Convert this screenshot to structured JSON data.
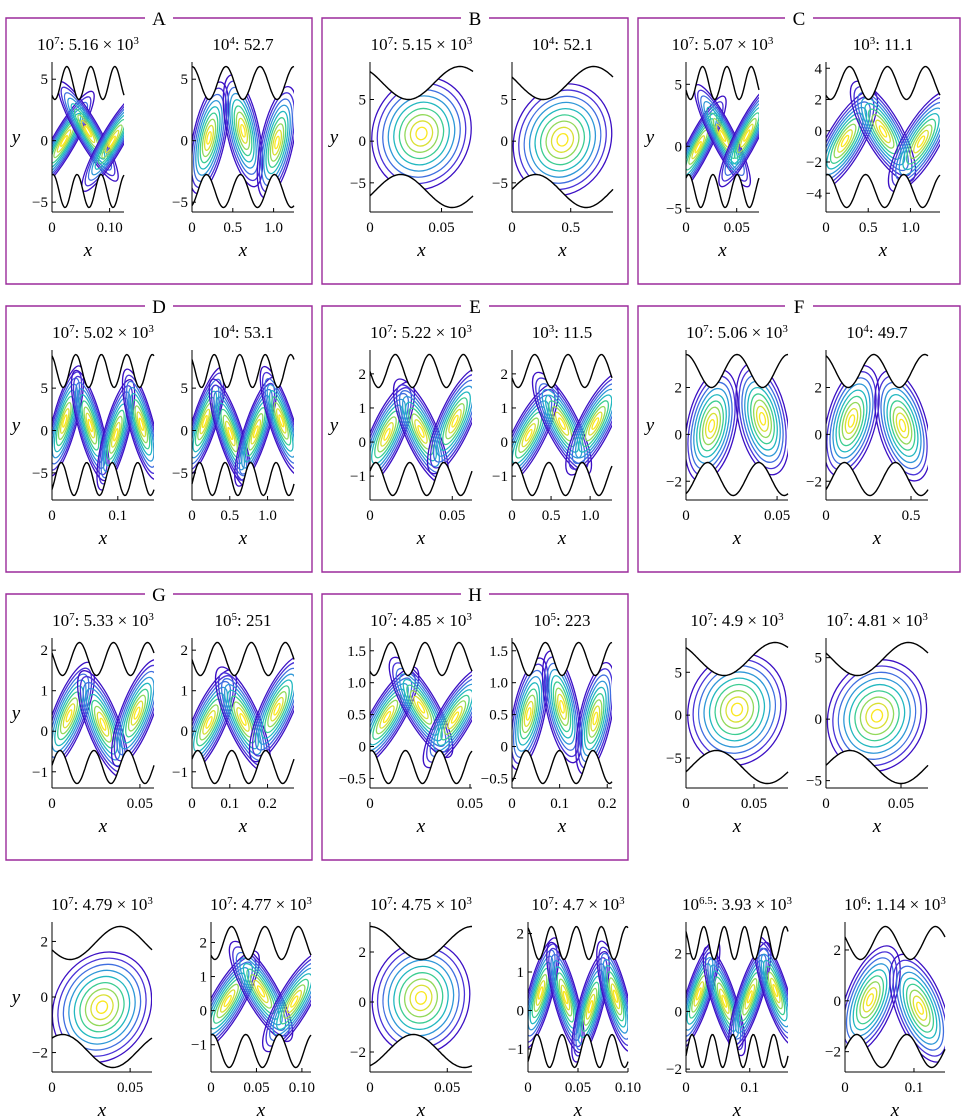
{
  "chart_data": {
    "type": "contour",
    "groups": [
      "A",
      "B",
      "C",
      "D",
      "E",
      "F",
      "G",
      "H"
    ],
    "x_axis_label": "x",
    "y_axis_label": "y",
    "palette": [
      "#3b0fc4",
      "#4a33d8",
      "#3f6ee0",
      "#2f98d8",
      "#22b8c0",
      "#3ccd92",
      "#92d95a",
      "#d9e033",
      "#fbe81f"
    ],
    "boundary_color": "#000000",
    "group_box_color": "#9b2a9b",
    "panels": [
      {
        "id": "A1",
        "group": "A",
        "title": "10^7: 5.16 × 10^3",
        "ra_exp": "7",
        "value_mant": "5.16",
        "value_exp": "3",
        "xticks": [
          "0",
          "0.10"
        ],
        "xtick_vals": [
          0,
          0.1
        ],
        "xlim": [
          0,
          0.125
        ],
        "yticks": [
          "5",
          "0",
          "−5"
        ],
        "ytick_vals": [
          5,
          0,
          -5
        ],
        "ylim": [
          -5.8,
          6.4
        ],
        "bump": 3,
        "row_label": "y"
      },
      {
        "id": "A2",
        "group": "A",
        "title": "10^4: 52.7",
        "ra_exp": "4",
        "value": "52.7",
        "xticks": [
          "0",
          "0.5",
          "1.0"
        ],
        "xtick_vals": [
          0,
          0.5,
          1.0
        ],
        "xlim": [
          0,
          1.25
        ],
        "yticks": [
          "5",
          "0",
          "−5"
        ],
        "ytick_vals": [
          5,
          0,
          -5
        ],
        "ylim": [
          -5.8,
          6.4
        ],
        "bump": 3
      },
      {
        "id": "B1",
        "group": "B",
        "title": "10^7: 5.15 × 10^3",
        "ra_exp": "7",
        "value_mant": "5.15",
        "value_exp": "3",
        "xticks": [
          "0",
          "0.05"
        ],
        "xtick_vals": [
          0,
          0.05
        ],
        "xlim": [
          0,
          0.072
        ],
        "yticks": [
          "5",
          "0",
          "−5"
        ],
        "ytick_vals": [
          5,
          0,
          -5
        ],
        "ylim": [
          -8.5,
          9.5
        ],
        "bump": 1,
        "row_label": "y"
      },
      {
        "id": "B2",
        "group": "B",
        "title": "10^4: 52.1",
        "ra_exp": "4",
        "value": "52.1",
        "xticks": [
          "0",
          "0.5"
        ],
        "xtick_vals": [
          0,
          0.5
        ],
        "xlim": [
          0,
          0.86
        ],
        "yticks": [
          "5",
          "0",
          "−5"
        ],
        "ytick_vals": [
          5,
          0,
          -5
        ],
        "ylim": [
          -8.5,
          9.5
        ],
        "bump": 1
      },
      {
        "id": "C1",
        "group": "C",
        "title": "10^7: 5.07 × 10^3",
        "ra_exp": "7",
        "value_mant": "5.07",
        "value_exp": "3",
        "xticks": [
          "0",
          "0.05"
        ],
        "xtick_vals": [
          0,
          0.05
        ],
        "xlim": [
          0,
          0.072
        ],
        "yticks": [
          "5",
          "0",
          "−5"
        ],
        "ytick_vals": [
          5,
          0,
          -5
        ],
        "ylim": [
          -5.3,
          6.8
        ],
        "bump": 3,
        "row_label": "y"
      },
      {
        "id": "C2",
        "group": "C",
        "title": "10^3: 11.1",
        "ra_exp": "3",
        "value": "11.1",
        "xticks": [
          "0",
          "0.5",
          "1.0"
        ],
        "xtick_vals": [
          0,
          0.5,
          1.0
        ],
        "xlim": [
          0,
          1.35
        ],
        "yticks": [
          "4",
          "2",
          "0",
          "−2",
          "−4"
        ],
        "ytick_vals": [
          4,
          2,
          0,
          -2,
          -4
        ],
        "ylim": [
          -5.2,
          4.4
        ],
        "bump": 3
      },
      {
        "id": "D1",
        "group": "D",
        "title": "10^7: 5.02 × 10^3",
        "ra_exp": "7",
        "value_mant": "5.02",
        "value_exp": "3",
        "xticks": [
          "0",
          "0.1"
        ],
        "xtick_vals": [
          0,
          0.1
        ],
        "xlim": [
          0,
          0.155
        ],
        "yticks": [
          "5",
          "0",
          "−5"
        ],
        "ytick_vals": [
          5,
          0,
          -5
        ],
        "ylim": [
          -8.2,
          9.5
        ],
        "bump": 4,
        "row_label": "y"
      },
      {
        "id": "D2",
        "group": "D",
        "title": "10^4: 53.1",
        "ra_exp": "4",
        "value": "53.1",
        "xticks": [
          "0",
          "0.5",
          "1.0"
        ],
        "xtick_vals": [
          0,
          0.5,
          1.0
        ],
        "xlim": [
          0,
          1.35
        ],
        "yticks": [
          "5",
          "0",
          "−5"
        ],
        "ytick_vals": [
          5,
          0,
          -5
        ],
        "ylim": [
          -8.2,
          9.5
        ],
        "bump": 4
      },
      {
        "id": "E1",
        "group": "E",
        "title": "10^7: 5.22 × 10^3",
        "ra_exp": "7",
        "value_mant": "5.22",
        "value_exp": "3",
        "xticks": [
          "0",
          "0.05"
        ],
        "xtick_vals": [
          0,
          0.05
        ],
        "xlim": [
          0,
          0.062
        ],
        "yticks": [
          "2",
          "1",
          "0",
          "−1"
        ],
        "ytick_vals": [
          2,
          1,
          0,
          -1
        ],
        "ylim": [
          -1.7,
          2.7
        ],
        "bump": 3,
        "row_label": "y"
      },
      {
        "id": "E2",
        "group": "E",
        "title": "10^3: 11.5",
        "ra_exp": "3",
        "value": "11.5",
        "xticks": [
          "0",
          "0.5",
          "1.0"
        ],
        "xtick_vals": [
          0,
          0.5,
          1.0
        ],
        "xlim": [
          0,
          1.28
        ],
        "yticks": [
          "2",
          "1",
          "0",
          "−1"
        ],
        "ytick_vals": [
          2,
          1,
          0,
          -1
        ],
        "ylim": [
          -1.7,
          2.7
        ],
        "bump": 3
      },
      {
        "id": "F1",
        "group": "F",
        "title": "10^7: 5.06 × 10^3",
        "ra_exp": "7",
        "value_mant": "5.06",
        "value_exp": "3",
        "xticks": [
          "0",
          "0.05"
        ],
        "xtick_vals": [
          0,
          0.05
        ],
        "xlim": [
          0,
          0.056
        ],
        "yticks": [
          "2",
          "0",
          "−2"
        ],
        "ytick_vals": [
          2,
          0,
          -2
        ],
        "ylim": [
          -2.8,
          3.6
        ],
        "bump": 2,
        "row_label": "y"
      },
      {
        "id": "F2",
        "group": "F",
        "title": "10^4: 49.7",
        "ra_exp": "4",
        "value": "49.7",
        "xticks": [
          "0",
          "0.5"
        ],
        "xtick_vals": [
          0,
          0.5
        ],
        "xlim": [
          0,
          0.6
        ],
        "yticks": [
          "2",
          "0",
          "−2"
        ],
        "ytick_vals": [
          2,
          0,
          -2
        ],
        "ylim": [
          -2.8,
          3.6
        ],
        "bump": 2
      },
      {
        "id": "G1",
        "group": "G",
        "title": "10^7: 5.33 × 10^3",
        "ra_exp": "7",
        "value_mant": "5.33",
        "value_exp": "3",
        "xticks": [
          "0",
          "0.05"
        ],
        "xtick_vals": [
          0,
          0.05
        ],
        "xlim": [
          0,
          0.058
        ],
        "yticks": [
          "2",
          "1",
          "0",
          "−1"
        ],
        "ytick_vals": [
          2,
          1,
          0,
          -1
        ],
        "ylim": [
          -1.4,
          2.3
        ],
        "bump": 3,
        "row_label": "y"
      },
      {
        "id": "G2",
        "group": "G",
        "title": "10^5: 251",
        "ra_exp": "5",
        "value": "251",
        "xticks": [
          "0",
          "0.1",
          "0.2"
        ],
        "xtick_vals": [
          0,
          0.1,
          0.2
        ],
        "xlim": [
          0,
          0.27
        ],
        "yticks": [
          "2",
          "1",
          "0",
          "−1"
        ],
        "ytick_vals": [
          2,
          1,
          0,
          -1
        ],
        "ylim": [
          -1.4,
          2.3
        ],
        "bump": 3
      },
      {
        "id": "H1",
        "group": "H",
        "title": "10^7: 4.85 × 10^3",
        "ra_exp": "7",
        "value_mant": "4.85",
        "value_exp": "3",
        "xticks": [
          "0",
          "0.05"
        ],
        "xtick_vals": [
          0,
          0.05
        ],
        "xlim": [
          0,
          0.051
        ],
        "yticks": [
          "1.5",
          "1.0",
          "0.5",
          "0",
          "−0.5"
        ],
        "ytick_vals": [
          1.5,
          1.0,
          0.5,
          0,
          -0.5
        ],
        "ylim": [
          -0.65,
          1.7
        ],
        "bump": 3
      },
      {
        "id": "H2",
        "group": "H",
        "title": "10^5: 223",
        "ra_exp": "5",
        "value": "223",
        "xticks": [
          "0",
          "0.1",
          "0.2"
        ],
        "xtick_vals": [
          0,
          0.1,
          0.2
        ],
        "xlim": [
          0,
          0.21
        ],
        "yticks": [
          "1.5",
          "1.0",
          "0.5",
          "0",
          "−0.5"
        ],
        "ytick_vals": [
          1.5,
          1.0,
          0.5,
          0,
          -0.5
        ],
        "ylim": [
          -0.65,
          1.7
        ],
        "bump": 3
      },
      {
        "id": "I1",
        "group": "",
        "title": "10^7: 4.9 × 10^3",
        "ra_exp": "7",
        "value_mant": "4.9",
        "value_exp": "3",
        "xticks": [
          "0",
          "0.05"
        ],
        "xtick_vals": [
          0,
          0.05
        ],
        "xlim": [
          0,
          0.075
        ],
        "yticks": [
          "5",
          "0",
          "−5"
        ],
        "ytick_vals": [
          5,
          0,
          -5
        ],
        "ylim": [
          -8.5,
          9.0
        ],
        "bump": 1
      },
      {
        "id": "I2",
        "group": "",
        "title": "10^7: 4.81 × 10^3",
        "ra_exp": "7",
        "value_mant": "4.81",
        "value_exp": "3",
        "xticks": [
          "0",
          "0.05"
        ],
        "xtick_vals": [
          0,
          0.05
        ],
        "xlim": [
          0,
          0.068
        ],
        "yticks": [
          "5",
          "0",
          "−5"
        ],
        "ytick_vals": [
          5,
          0,
          -5
        ],
        "ylim": [
          -5.6,
          6.6
        ],
        "bump": 1
      },
      {
        "id": "J1",
        "group": "",
        "title": "10^7: 4.79 × 10^3",
        "ra_exp": "7",
        "value_mant": "4.79",
        "value_exp": "3",
        "xticks": [
          "0",
          "0.05"
        ],
        "xtick_vals": [
          0,
          0.05
        ],
        "xlim": [
          0,
          0.064
        ],
        "yticks": [
          "2",
          "0",
          "−2"
        ],
        "ytick_vals": [
          2,
          0,
          -2
        ],
        "ylim": [
          -2.7,
          2.7
        ],
        "bump": 1,
        "row_label": "y"
      },
      {
        "id": "J2",
        "group": "",
        "title": "10^7: 4.77 × 10^3",
        "ra_exp": "7",
        "value_mant": "4.77",
        "value_exp": "3",
        "xticks": [
          "0",
          "0.05",
          "0.10"
        ],
        "xtick_vals": [
          0,
          0.05,
          0.1
        ],
        "xlim": [
          0,
          0.11
        ],
        "yticks": [
          "2",
          "1",
          "0",
          "−1"
        ],
        "ytick_vals": [
          2,
          1,
          0,
          -1
        ],
        "ylim": [
          -1.8,
          2.6
        ],
        "bump": 3
      },
      {
        "id": "J3",
        "group": "",
        "title": "10^7: 4.75 × 10^3",
        "ra_exp": "7",
        "value_mant": "4.75",
        "value_exp": "3",
        "xticks": [
          "0",
          "0.05"
        ],
        "xtick_vals": [
          0,
          0.05
        ],
        "xlim": [
          0,
          0.066
        ],
        "yticks": [
          "2",
          "0",
          "−2"
        ],
        "ytick_vals": [
          2,
          0,
          -2
        ],
        "ylim": [
          -2.8,
          3.2
        ],
        "bump": 1
      },
      {
        "id": "J4",
        "group": "",
        "title": "10^7: 4.7 × 10^3",
        "ra_exp": "7",
        "value_mant": "4.7",
        "value_exp": "3",
        "xticks": [
          "0",
          "0.05",
          "0.10"
        ],
        "xtick_vals": [
          0,
          0.05,
          0.1
        ],
        "xlim": [
          0,
          0.1
        ],
        "yticks": [
          "2",
          "1",
          "0",
          "−1"
        ],
        "ytick_vals": [
          2,
          1,
          0,
          -1
        ],
        "ylim": [
          -1.6,
          2.3
        ],
        "bump": 4
      },
      {
        "id": "J5",
        "group": "",
        "title": "10^6.5: 3.93 × 10^3",
        "ra_exp": "6.5",
        "value_mant": "3.93",
        "value_exp": "3",
        "xticks": [
          "0",
          "0.1"
        ],
        "xtick_vals": [
          0,
          0.1
        ],
        "xlim": [
          0,
          0.16
        ],
        "yticks": [
          "2",
          "0",
          "−2"
        ],
        "ytick_vals": [
          2,
          0,
          -2
        ],
        "ylim": [
          -2.1,
          3.1
        ],
        "bump": 5
      },
      {
        "id": "J6",
        "group": "",
        "title": "10^6: 1.14 × 10^3",
        "ra_exp": "6",
        "value_mant": "1.14",
        "value_exp": "3",
        "xticks": [
          "0",
          "0.1"
        ],
        "xtick_vals": [
          0,
          0.1
        ],
        "xlim": [
          0,
          0.145
        ],
        "yticks": [
          "2",
          "0",
          "−2"
        ],
        "ytick_vals": [
          2,
          0,
          -2
        ],
        "ylim": [
          -2.8,
          3.1
        ],
        "bump": 2
      }
    ]
  }
}
